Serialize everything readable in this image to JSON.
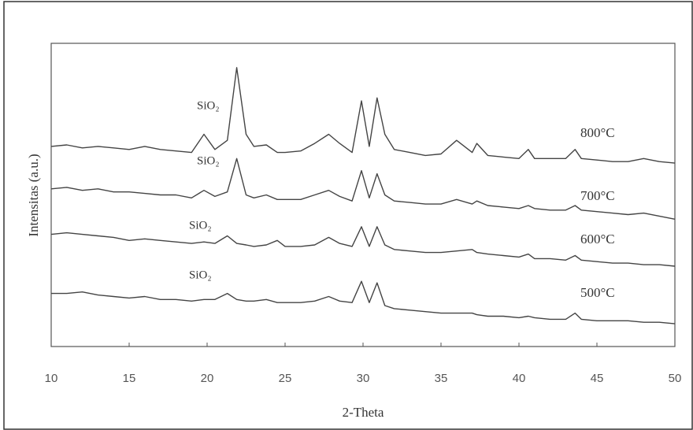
{
  "chart_data": {
    "type": "line",
    "x_label": "2-Theta",
    "y_label": "Intensitas (a.u.)",
    "xlim": [
      10,
      50
    ],
    "xticks": [
      10,
      15,
      20,
      25,
      30,
      35,
      40,
      45,
      50
    ],
    "ylim": [
      0,
      100
    ],
    "annotations": [
      "SiO₂",
      "SiO₂",
      "SiO₂",
      "SiO₂"
    ],
    "x": [
      10,
      11,
      12,
      13,
      14,
      15,
      16,
      17,
      18,
      19,
      19.8,
      20.5,
      21.3,
      21.9,
      22.5,
      23,
      23.8,
      24.5,
      25,
      26,
      26.9,
      27.8,
      28.5,
      29.3,
      29.9,
      30.4,
      30.9,
      31.4,
      32,
      33,
      34,
      35,
      36,
      37,
      37.3,
      38,
      39,
      40,
      40.6,
      41,
      42,
      43,
      43.6,
      44,
      45,
      46,
      47,
      48,
      49,
      50
    ],
    "series": [
      {
        "name": "800°C",
        "color": "#444444",
        "values": [
          66,
          66.5,
          65.5,
          66,
          65.5,
          65,
          66,
          65,
          64.5,
          64,
          70,
          65,
          68,
          92,
          70,
          66,
          66.5,
          64,
          64,
          64.5,
          67,
          70,
          67,
          64,
          81,
          66,
          82,
          70,
          65,
          64,
          63,
          63.5,
          68,
          64,
          67,
          63,
          62.5,
          62,
          65,
          62,
          62,
          62,
          65,
          62,
          61.5,
          61,
          61,
          62,
          61,
          60.5
        ]
      },
      {
        "name": "700°C",
        "color": "#444444",
        "values": [
          52,
          52.5,
          51.5,
          52,
          51,
          51,
          50.5,
          50,
          50,
          49,
          51.5,
          49.5,
          51,
          62,
          50,
          49,
          50,
          48.5,
          48.5,
          48.5,
          50,
          51.5,
          49.5,
          48,
          58,
          49,
          57,
          50,
          48,
          47.5,
          47,
          47,
          48.5,
          47,
          48,
          46.5,
          46,
          45.5,
          46.5,
          45.5,
          45,
          45,
          46.5,
          45,
          44.5,
          44,
          43.5,
          44,
          43,
          42
        ]
      },
      {
        "name": "600°C",
        "color": "#444444",
        "values": [
          37,
          37.5,
          37,
          36.5,
          36,
          35,
          35.5,
          35,
          34.5,
          34,
          34.5,
          34,
          36.5,
          34,
          33.5,
          33,
          33.5,
          35,
          33,
          33,
          33.5,
          36,
          34,
          33,
          39.5,
          33,
          39.5,
          33.5,
          32,
          31.5,
          31,
          31,
          31.5,
          32,
          31,
          30.5,
          30,
          29.5,
          30.5,
          29,
          29,
          28.5,
          30,
          28.5,
          28,
          27.5,
          27.5,
          27,
          27,
          26.5
        ]
      },
      {
        "name": "500°C",
        "color": "#444444",
        "values": [
          17.5,
          17.5,
          18,
          17,
          16.5,
          16,
          16.5,
          15.5,
          15.5,
          15,
          15.5,
          15.5,
          17.5,
          15.5,
          15,
          15,
          15.5,
          14.5,
          14.5,
          14.5,
          15,
          16.5,
          15,
          14.5,
          21.5,
          14.5,
          21,
          13.5,
          12.5,
          12,
          11.5,
          11,
          11,
          11,
          10.5,
          10,
          10,
          9.5,
          10,
          9.5,
          9,
          9,
          11,
          9,
          8.5,
          8.5,
          8.5,
          8,
          8,
          7.5
        ]
      }
    ]
  }
}
